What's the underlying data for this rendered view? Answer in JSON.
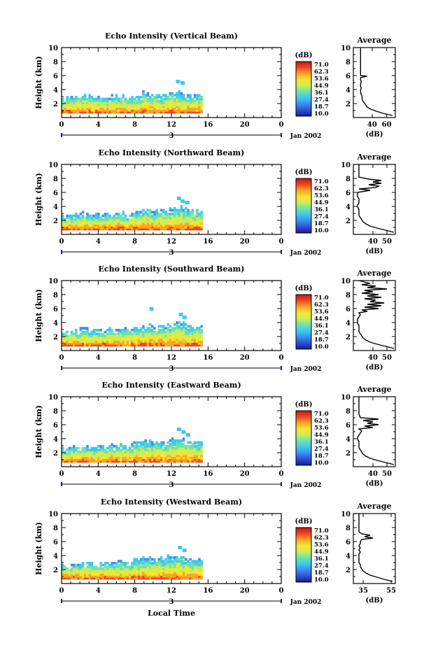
{
  "figure": {
    "xlabel": "Local Time",
    "date_label": "Jan 2002",
    "day_label": "3",
    "colorbar_unit": "(dB)",
    "colorbar_ticks": [
      "71.0",
      "62.3",
      "53.6",
      "44.9",
      "36.1",
      "27.4",
      "18.7",
      "10.0"
    ],
    "colors": {
      "colormap": [
        "#1a1a8c",
        "#2f4fd8",
        "#3a8ef0",
        "#3ec8f0",
        "#6fe0b0",
        "#c8ee58",
        "#f5e62e",
        "#f7a52b",
        "#ec4a1e",
        "#c2151a"
      ],
      "background": "#ffffff",
      "axes": "#000000",
      "day_marker": "#1c1c8c"
    }
  },
  "chart_data": [
    {
      "type": "heatmap",
      "title": "Echo Intensity (Vertical Beam)",
      "ylabel": "Height (km)",
      "xlabel": "",
      "x_ticks": [
        "0",
        "4",
        "8",
        "12",
        "16",
        "20",
        "0"
      ],
      "xlim": [
        0,
        24
      ],
      "y_ticks": [
        "2",
        "4",
        "6",
        "8",
        "10"
      ],
      "ylim": [
        0,
        10
      ],
      "data_end_hour": 15.3,
      "echo_top_km": [
        2.8,
        3.0,
        3.1,
        3.0,
        2.8,
        2.9,
        3.0,
        2.8,
        3.0,
        3.4,
        3.2,
        3.0,
        3.4,
        3.4,
        3.2,
        3.2
      ],
      "high_echo_cells": [
        {
          "hour": 12.5,
          "km": 5.0
        },
        {
          "hour": 13.0,
          "km": 4.8
        }
      ],
      "profile": {
        "title": "Average",
        "xlabel": "(dB)",
        "x_ticks": [
          "40",
          "60"
        ],
        "xlim": [
          14,
          72
        ],
        "ylim": [
          0,
          10
        ],
        "y_ticks": [
          "2",
          "4",
          "6",
          "8",
          "10"
        ],
        "heights_km": [
          0.3,
          0.6,
          0.9,
          1.2,
          1.5,
          1.8,
          2.1,
          2.4,
          2.7,
          3.0,
          3.3,
          3.6,
          3.9,
          4.2,
          4.5,
          4.8,
          5.1,
          5.4,
          5.7,
          5.9,
          6.0,
          6.3,
          6.6,
          7.0,
          8.0,
          9.0,
          10.0
        ],
        "values_db": [
          68,
          55,
          46,
          38,
          33,
          31,
          29,
          27,
          26,
          26,
          25,
          24,
          24,
          25,
          24,
          24,
          25,
          24,
          24,
          33,
          24,
          24,
          24,
          24,
          24,
          24,
          24
        ]
      }
    },
    {
      "type": "heatmap",
      "title": "Echo Intensity (Northward Beam)",
      "ylabel": "Height (km)",
      "xlabel": "",
      "x_ticks": [
        "0",
        "4",
        "8",
        "12",
        "16",
        "20",
        "0"
      ],
      "xlim": [
        0,
        24
      ],
      "y_ticks": [
        "2",
        "4",
        "6",
        "8",
        "10"
      ],
      "ylim": [
        0,
        10
      ],
      "data_end_hour": 15.3,
      "echo_top_km": [
        2.6,
        2.8,
        2.9,
        2.8,
        2.7,
        2.8,
        2.9,
        2.8,
        3.2,
        3.5,
        3.3,
        3.4,
        3.6,
        3.8,
        3.5,
        3.4
      ],
      "high_echo_cells": [
        {
          "hour": 12.6,
          "km": 5.0
        },
        {
          "hour": 13.0,
          "km": 4.6
        },
        {
          "hour": 13.5,
          "km": 4.4
        }
      ],
      "profile": {
        "title": "Average",
        "xlabel": "(dB)",
        "x_ticks": [
          "40",
          "50"
        ],
        "xlim": [
          26,
          56
        ],
        "ylim": [
          0,
          10
        ],
        "y_ticks": [
          "2",
          "4",
          "6",
          "8",
          "10"
        ],
        "heights_km": [
          0.3,
          0.6,
          0.9,
          1.2,
          1.5,
          1.8,
          2.1,
          2.4,
          2.7,
          3.0,
          3.3,
          3.6,
          3.9,
          4.2,
          4.5,
          4.8,
          5.1,
          5.4,
          5.7,
          6.0,
          6.3,
          6.5,
          6.7,
          6.9,
          7.1,
          7.3,
          7.5,
          7.7,
          7.9,
          8.2,
          9.0,
          10.0
        ],
        "values_db": [
          55,
          49,
          43,
          38,
          35,
          33,
          32,
          31,
          30,
          30,
          30,
          30,
          29,
          29,
          30,
          30,
          30,
          29,
          29,
          29,
          38,
          30,
          42,
          44,
          37,
          46,
          40,
          46,
          37,
          30,
          30,
          30
        ]
      }
    },
    {
      "type": "heatmap",
      "title": "Echo Intensity (Southward Beam)",
      "ylabel": "Height (km)",
      "xlabel": "",
      "x_ticks": [
        "0",
        "4",
        "8",
        "12",
        "16",
        "20",
        "0"
      ],
      "xlim": [
        0,
        24
      ],
      "y_ticks": [
        "2",
        "4",
        "6",
        "8",
        "10"
      ],
      "ylim": [
        0,
        10
      ],
      "data_end_hour": 15.3,
      "echo_top_km": [
        2.6,
        2.8,
        2.9,
        2.8,
        2.8,
        2.9,
        3.0,
        3.0,
        3.3,
        3.5,
        3.4,
        3.4,
        3.7,
        3.9,
        3.6,
        3.4
      ],
      "high_echo_cells": [
        {
          "hour": 9.6,
          "km": 5.8
        },
        {
          "hour": 12.8,
          "km": 5.0
        },
        {
          "hour": 13.2,
          "km": 4.6
        }
      ],
      "profile": {
        "title": "Average",
        "xlabel": "(dB)",
        "x_ticks": [
          "40",
          "50"
        ],
        "xlim": [
          26,
          56
        ],
        "ylim": [
          0,
          10
        ],
        "y_ticks": [
          "2",
          "4",
          "6",
          "8",
          "10"
        ],
        "heights_km": [
          0.3,
          0.6,
          0.9,
          1.2,
          1.5,
          1.8,
          2.1,
          2.4,
          2.7,
          3.0,
          3.3,
          3.6,
          3.9,
          4.2,
          4.5,
          4.8,
          5.1,
          5.4,
          5.6,
          5.8,
          6.0,
          6.2,
          6.4,
          6.6,
          6.8,
          7.0,
          7.2,
          7.4,
          7.6,
          7.8,
          8.0,
          8.2,
          8.4,
          8.6,
          8.8,
          9.0,
          9.2,
          9.4,
          9.6,
          10.0
        ],
        "values_db": [
          55,
          49,
          43,
          38,
          35,
          33,
          32,
          31,
          30,
          30,
          30,
          30,
          29,
          29,
          29,
          30,
          31,
          30,
          36,
          32,
          44,
          34,
          46,
          36,
          48,
          38,
          42,
          34,
          46,
          36,
          44,
          32,
          40,
          34,
          50,
          36,
          42,
          32,
          38,
          30
        ]
      }
    },
    {
      "type": "heatmap",
      "title": "Echo Intensity (Eastward Beam)",
      "ylabel": "Height (km)",
      "xlabel": "",
      "x_ticks": [
        "0",
        "4",
        "8",
        "12",
        "16",
        "20",
        "0"
      ],
      "xlim": [
        0,
        24
      ],
      "y_ticks": [
        "2",
        "4",
        "6",
        "8",
        "10"
      ],
      "ylim": [
        0,
        10
      ],
      "data_end_hour": 15.3,
      "echo_top_km": [
        2.6,
        2.8,
        2.9,
        2.8,
        2.8,
        2.9,
        3.1,
        3.0,
        3.3,
        3.6,
        3.4,
        3.4,
        3.8,
        3.9,
        3.6,
        3.4
      ],
      "high_echo_cells": [
        {
          "hour": 12.6,
          "km": 5.2
        },
        {
          "hour": 13.1,
          "km": 4.8
        },
        {
          "hour": 13.6,
          "km": 4.4
        }
      ],
      "profile": {
        "title": "Average",
        "xlabel": "(dB)",
        "x_ticks": [
          "40",
          "50"
        ],
        "xlim": [
          26,
          56
        ],
        "ylim": [
          0,
          10
        ],
        "y_ticks": [
          "2",
          "4",
          "6",
          "8",
          "10"
        ],
        "heights_km": [
          0.3,
          0.6,
          0.9,
          1.2,
          1.5,
          1.8,
          2.1,
          2.4,
          2.7,
          3.0,
          3.3,
          3.6,
          3.9,
          4.2,
          4.5,
          4.8,
          5.1,
          5.4,
          5.6,
          5.8,
          6.0,
          6.2,
          6.4,
          6.6,
          6.8,
          7.0,
          7.5,
          8.0,
          9.0,
          10.0
        ],
        "values_db": [
          55,
          49,
          43,
          38,
          35,
          33,
          32,
          31,
          30,
          30,
          30,
          30,
          29,
          29,
          30,
          31,
          32,
          30,
          40,
          34,
          44,
          36,
          40,
          33,
          44,
          31,
          30,
          30,
          30,
          30
        ]
      }
    },
    {
      "type": "heatmap",
      "title": "Echo Intensity (Westward Beam)",
      "ylabel": "Height (km)",
      "xlabel": "Local Time",
      "x_ticks": [
        "0",
        "4",
        "8",
        "12",
        "16",
        "20",
        "0"
      ],
      "xlim": [
        0,
        24
      ],
      "y_ticks": [
        "2",
        "4",
        "6",
        "8",
        "10"
      ],
      "ylim": [
        0,
        10
      ],
      "data_end_hour": 15.3,
      "echo_top_km": [
        2.6,
        2.8,
        2.9,
        2.8,
        2.8,
        2.9,
        3.0,
        3.0,
        3.3,
        3.6,
        3.4,
        3.4,
        3.8,
        3.8,
        3.5,
        3.4
      ],
      "high_echo_cells": [
        {
          "hour": 12.7,
          "km": 5.0
        },
        {
          "hour": 13.2,
          "km": 4.6
        }
      ],
      "profile": {
        "title": "Average",
        "xlabel": "(dB)",
        "x_ticks": [
          "35",
          "55"
        ],
        "xlim": [
          28,
          58
        ],
        "ylim": [
          0,
          10
        ],
        "y_ticks": [
          "2",
          "4",
          "6",
          "8",
          "10"
        ],
        "heights_km": [
          0.3,
          0.6,
          0.9,
          1.2,
          1.5,
          1.8,
          2.1,
          2.4,
          2.7,
          3.0,
          3.3,
          3.6,
          3.9,
          4.2,
          4.5,
          4.8,
          5.1,
          5.4,
          5.7,
          6.0,
          6.3,
          6.5,
          6.7,
          6.9,
          7.1,
          7.4,
          7.8,
          8.2,
          9.0,
          10.0
        ],
        "values_db": [
          56,
          50,
          45,
          40,
          37,
          35,
          34,
          33,
          33,
          32,
          32,
          32,
          32,
          32,
          33,
          32,
          33,
          32,
          33,
          33,
          34,
          42,
          36,
          40,
          34,
          32,
          32,
          32,
          32,
          32
        ]
      }
    }
  ]
}
